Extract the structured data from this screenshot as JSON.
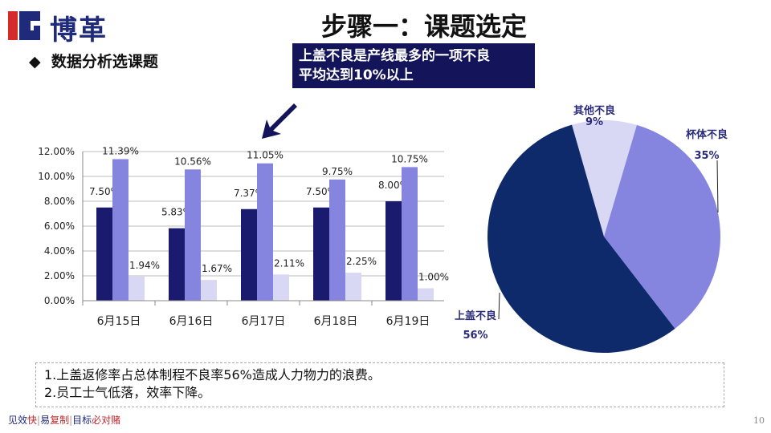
{
  "brand": {
    "name": "博革"
  },
  "title": "步骤一：课题选定",
  "subtitle": "数据分析选课题",
  "callout": {
    "line1": "上盖不良是产线最多的一项不良",
    "line2": "平均达到10%以上"
  },
  "notes": [
    "1.上盖返修率占总体制程不良率56%造成人力物力的浪费。",
    "2.员工士气低落，效率下降。"
  ],
  "footer": {
    "parts": [
      {
        "t": "见效",
        "c": "#1f2a7a"
      },
      {
        "t": "快",
        "c": "#c0282d"
      },
      {
        "t": "|",
        "c": "#999"
      },
      {
        "t": "易",
        "c": "#1f2a7a"
      },
      {
        "t": "复制",
        "c": "#c0282d"
      },
      {
        "t": "|",
        "c": "#999"
      },
      {
        "t": "目标",
        "c": "#1f2a7a"
      },
      {
        "t": "必对赌",
        "c": "#c0282d"
      }
    ]
  },
  "page_number": "10",
  "colors": {
    "dark": "#1a1a6e",
    "mid": "#8585e0",
    "light": "#d8d8f5",
    "pie_dark": "#0f2a6a"
  },
  "chart_data": [
    {
      "type": "bar",
      "categories": [
        "6月15日",
        "6月16日",
        "6月17日",
        "6月18日",
        "6月19日"
      ],
      "series": [
        {
          "values": [
            7.5,
            5.83,
            7.37,
            7.5,
            8.0
          ],
          "labels": [
            "7.50%",
            "5.83%",
            "7.37%",
            "7.50%",
            "8.00%"
          ]
        },
        {
          "values": [
            11.39,
            10.56,
            11.05,
            9.75,
            10.75
          ],
          "labels": [
            "11.39%",
            "10.56%",
            "11.05%",
            "9.75%",
            "10.75%"
          ]
        },
        {
          "values": [
            1.94,
            1.67,
            2.11,
            2.25,
            1.0
          ],
          "labels": [
            "1.94%",
            "1.67%",
            "2.11%",
            "2.25%",
            "1.00%"
          ]
        }
      ],
      "ylim": [
        0,
        12
      ],
      "yticks": [
        "0.00%",
        "2.00%",
        "4.00%",
        "6.00%",
        "8.00%",
        "10.00%",
        "12.00%"
      ],
      "grid": true
    },
    {
      "type": "pie",
      "slices": [
        {
          "name": "其他不良",
          "value": 9,
          "label": "9%"
        },
        {
          "name": "杯体不良",
          "value": 35,
          "label": "35%"
        },
        {
          "name": "上盖不良",
          "value": 56,
          "label": "56%"
        }
      ]
    }
  ]
}
